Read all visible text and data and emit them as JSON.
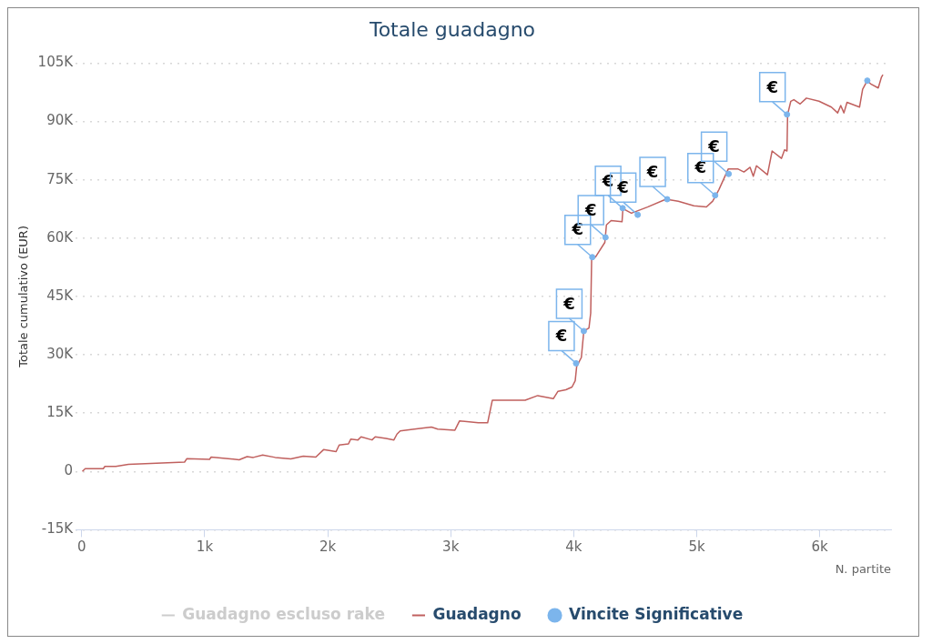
{
  "chart_data": {
    "type": "line",
    "title": "Totale guadagno",
    "xlabel": "N. partite",
    "ylabel": "Totale cumulativo (EUR)",
    "xlim": [
      -50,
      6580
    ],
    "ylim": [
      -15000,
      105000
    ],
    "xticks": [
      0,
      {
        "value": 1000,
        "label": "1k"
      },
      {
        "value": 2000,
        "label": "2k"
      },
      {
        "value": 3000,
        "label": "3k"
      },
      {
        "value": 4000,
        "label": "4k"
      },
      {
        "value": 5000,
        "label": "5k"
      },
      {
        "value": 6000,
        "label": "6k"
      }
    ],
    "yticks": [
      {
        "value": -15000,
        "label": "-15K"
      },
      0,
      {
        "value": 15000,
        "label": "15K"
      },
      {
        "value": 30000,
        "label": "30K"
      },
      {
        "value": 45000,
        "label": "45K"
      },
      {
        "value": 60000,
        "label": "60K"
      },
      {
        "value": 75000,
        "label": "75K"
      },
      {
        "value": 90000,
        "label": "90K"
      },
      {
        "value": 105000,
        "label": "105K"
      }
    ],
    "grid": "y",
    "legend": "bottom",
    "series": [
      {
        "name": "Guadagno escluso rake",
        "color": "#cccccc"
      },
      {
        "name": "Guadagno",
        "color": "#c0605e",
        "x": [
          5,
          28,
          175,
          188,
          277,
          379,
          836,
          855,
          1039,
          1052,
          1280,
          1344,
          1395,
          1471,
          1573,
          1700,
          1801,
          1903,
          1966,
          2068,
          2093,
          2169,
          2187,
          2246,
          2271,
          2360,
          2386,
          2474,
          2538,
          2563,
          2589,
          2690,
          2843,
          2894,
          3034,
          3072,
          3224,
          3300,
          3338,
          3605,
          3707,
          3834,
          3872,
          3936,
          3986,
          4012,
          4024,
          4062,
          4082,
          4124,
          4138,
          4146,
          4177,
          4253,
          4266,
          4304,
          4393,
          4400,
          4469,
          4600,
          4750,
          4850,
          4977,
          5079,
          5130,
          5181,
          5257,
          5333,
          5384,
          5434,
          5460,
          5486,
          5575,
          5613,
          5689,
          5714,
          5734,
          5739,
          5765,
          5790,
          5841,
          5892,
          5994,
          6095,
          6146,
          6171,
          6197,
          6222,
          6324,
          6349,
          6387,
          6413,
          6476,
          6501,
          6514
        ],
        "values": [
          0,
          700,
          700,
          1300,
          1300,
          1800,
          2400,
          3300,
          3100,
          3700,
          3000,
          3800,
          3600,
          4200,
          3600,
          3200,
          3900,
          3700,
          5600,
          5100,
          6800,
          7100,
          8300,
          8100,
          8900,
          8100,
          8900,
          8500,
          8100,
          9600,
          10400,
          10800,
          11400,
          10900,
          10600,
          13000,
          12500,
          12500,
          18300,
          18300,
          19500,
          18700,
          20600,
          21000,
          21700,
          23300,
          27000,
          29300,
          36100,
          36900,
          40700,
          55100,
          55100,
          58900,
          63400,
          64500,
          64200,
          67600,
          66400,
          68000,
          70000,
          69500,
          68300,
          68000,
          69500,
          72500,
          77800,
          77800,
          77000,
          78200,
          75900,
          78600,
          76300,
          82400,
          80500,
          82700,
          82400,
          91800,
          95200,
          95600,
          94500,
          96000,
          95200,
          93700,
          92200,
          94100,
          92200,
          94900,
          93700,
          98300,
          100500,
          99700,
          98600,
          101300,
          102000
        ]
      },
      {
        "name": "Vincite Significative",
        "color": "#7cb5ec",
        "type": "scatter",
        "marker": "circle",
        "x": [
          4019,
          4082,
          4151,
          4258,
          4398,
          4520,
          4760,
          5150,
          5260,
          5734,
          6387
        ],
        "values": [
          27800,
          36100,
          55100,
          60200,
          67700,
          66000,
          70000,
          71000,
          76500,
          91800,
          100500
        ]
      }
    ],
    "annotations": [
      {
        "text": "€",
        "x": 4019,
        "y": 27800
      },
      {
        "text": "€",
        "x": 4082,
        "y": 36100
      },
      {
        "text": "€",
        "x": 4151,
        "y": 55100
      },
      {
        "text": "€",
        "x": 4258,
        "y": 60200
      },
      {
        "text": "€",
        "x": 4398,
        "y": 67700
      },
      {
        "text": "€",
        "x": 4520,
        "y": 66000
      },
      {
        "text": "€",
        "x": 4760,
        "y": 70000
      },
      {
        "text": "€",
        "x": 5150,
        "y": 71000
      },
      {
        "text": "€",
        "x": 5260,
        "y": 76500
      },
      {
        "text": "€",
        "x": 5734,
        "y": 91800
      }
    ]
  }
}
